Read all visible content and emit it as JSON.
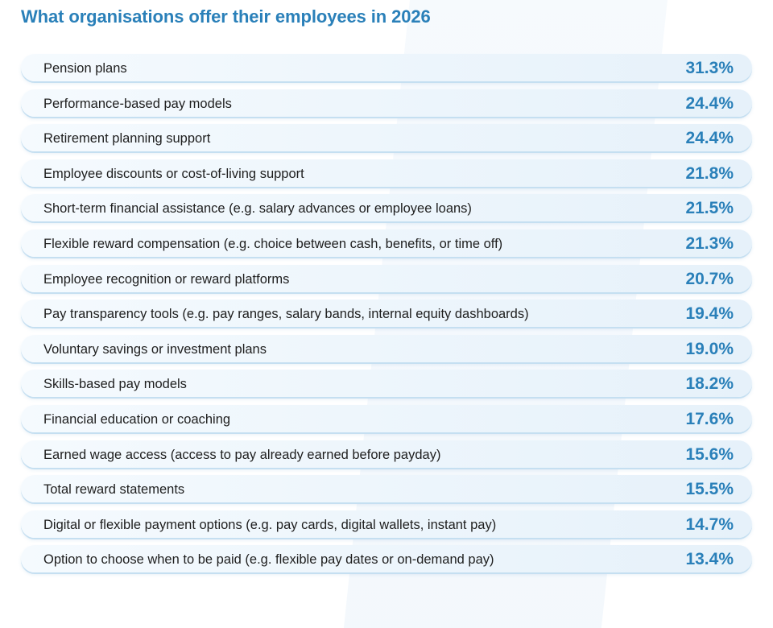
{
  "title": "What organisations offer their employees in 2026",
  "colors": {
    "title": "#2a80b9",
    "value": "#2a80b9",
    "label": "#1e1e1e",
    "row_background": "#eef6fc",
    "row_border": "#c5dff1"
  },
  "chart_data": {
    "type": "table",
    "title": "What organisations offer their employees in 2026",
    "unit": "%",
    "categories": [
      "Pension plans",
      "Performance-based pay models",
      "Retirement planning support",
      "Employee discounts or cost-of-living support",
      "Short-term financial assistance (e.g. salary advances or employee loans)",
      "Flexible reward compensation (e.g. choice between cash, benefits, or time off)",
      "Employee recognition or reward platforms",
      "Pay transparency tools (e.g. pay ranges, salary bands, internal equity dashboards)",
      "Voluntary savings or investment plans",
      "Skills-based pay models",
      "Financial education or coaching",
      "Earned wage access (access to pay already earned before payday)",
      "Total reward statements",
      "Digital or flexible payment options (e.g. pay cards, digital wallets, instant pay)",
      "Option to choose when to be paid (e.g. flexible pay dates or on-demand pay)"
    ],
    "values": [
      31.3,
      24.4,
      24.4,
      21.8,
      21.5,
      21.3,
      20.7,
      19.4,
      19.0,
      18.2,
      17.6,
      15.6,
      15.5,
      14.7,
      13.4
    ],
    "value_labels": [
      "31.3%",
      "24.4%",
      "24.4%",
      "21.8%",
      "21.5%",
      "21.3%",
      "20.7%",
      "19.4%",
      "19.0%",
      "18.2%",
      "17.6%",
      "15.6%",
      "15.5%",
      "14.7%",
      "13.4%"
    ]
  }
}
